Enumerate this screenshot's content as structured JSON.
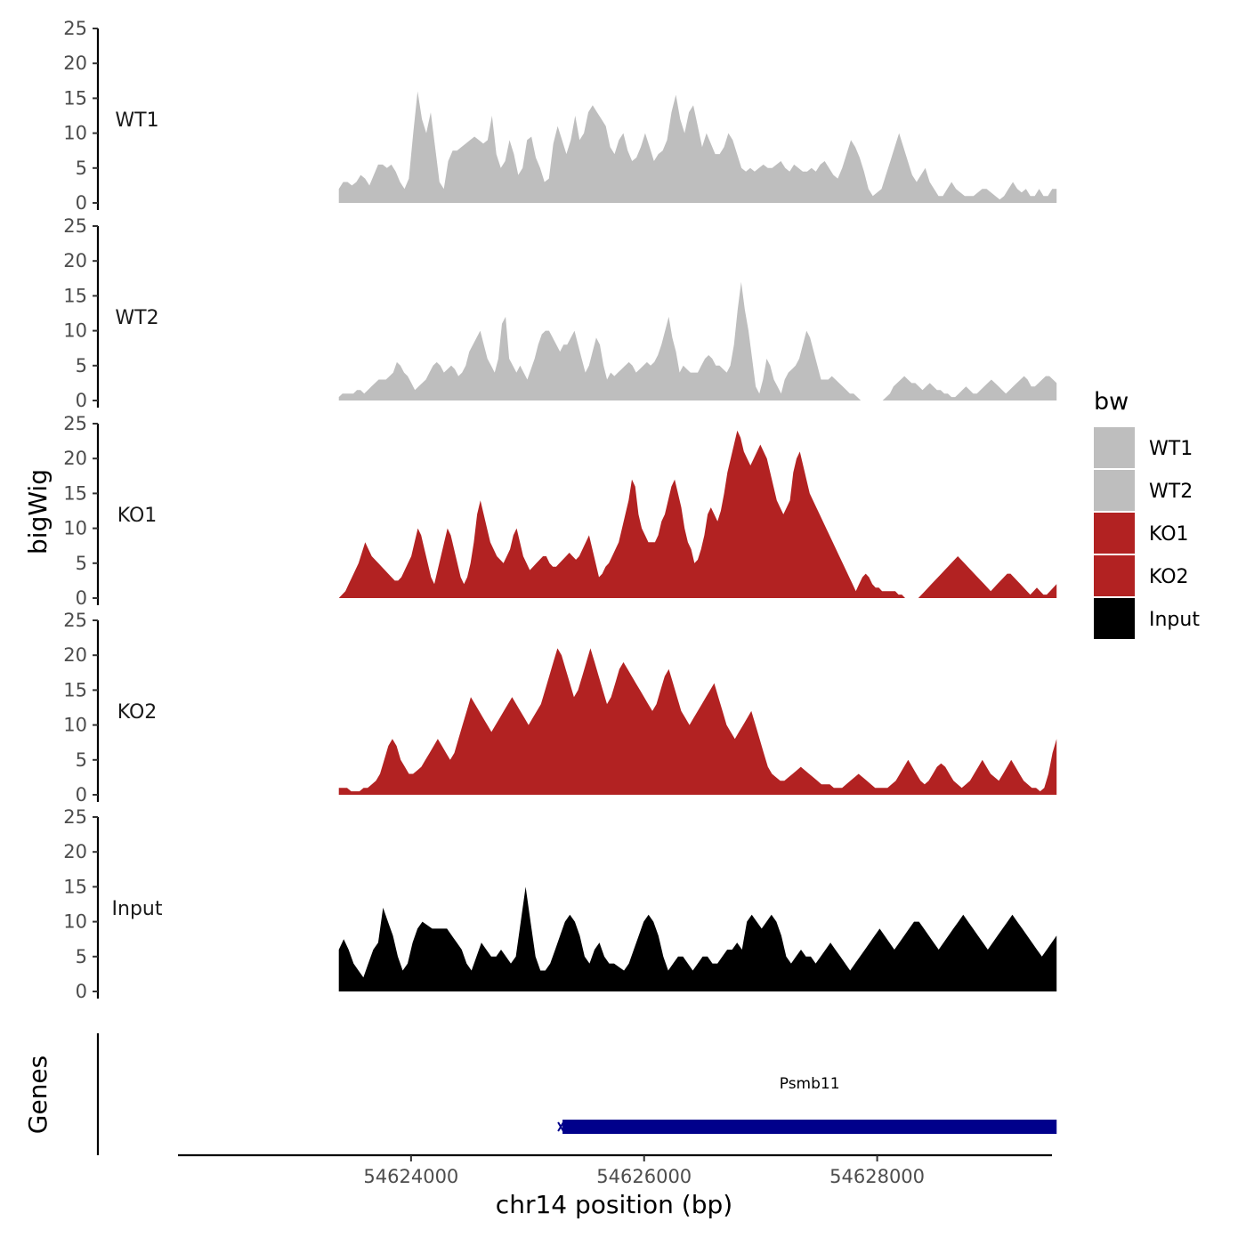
{
  "chart_data": {
    "type": "area",
    "xlabel": "chr14 position (bp)",
    "ylabel": "bigWig",
    "genes_label": "Genes",
    "xlim": [
      54622000,
      54629500
    ],
    "data_range": [
      54623380,
      54629540
    ],
    "x_ticks": [
      {
        "value": 54624000,
        "label": "54624000"
      },
      {
        "value": 54626000,
        "label": "54626000"
      },
      {
        "value": 54628000,
        "label": "54628000"
      }
    ],
    "ylim": [
      0,
      25
    ],
    "y_ticks": [
      "0",
      "5",
      "10",
      "15",
      "20",
      "25"
    ],
    "legend": {
      "title": "bw",
      "entries": [
        {
          "label": "WT1",
          "color": "#bebebe"
        },
        {
          "label": "WT2",
          "color": "#bebebe"
        },
        {
          "label": "KO1",
          "color": "#b22222"
        },
        {
          "label": "KO2",
          "color": "#b22222"
        },
        {
          "label": "Input",
          "color": "#000000"
        }
      ]
    },
    "tracks": [
      {
        "name": "WT1",
        "color": "#bebebe",
        "values": [
          2,
          3,
          3,
          2.5,
          3,
          4,
          3.5,
          2.5,
          4,
          5.5,
          5.5,
          5,
          5.5,
          4.5,
          3,
          2,
          3.5,
          10,
          16,
          12,
          10,
          13,
          8,
          3,
          2,
          6,
          7.5,
          7.5,
          8,
          8.5,
          9,
          9.5,
          9,
          8.5,
          9,
          12.5,
          7,
          5,
          6,
          9,
          7,
          4,
          5,
          9,
          9.5,
          6.5,
          5,
          3,
          3.5,
          8.5,
          11,
          9,
          7,
          9,
          12.5,
          9,
          10,
          13,
          14,
          13,
          12,
          11,
          8,
          7,
          9,
          10,
          7.5,
          6,
          6.5,
          8,
          10,
          8,
          6,
          7,
          7.5,
          9,
          13,
          15.5,
          12,
          10,
          13,
          14,
          11,
          8,
          10,
          8.5,
          7,
          7,
          8,
          10,
          9,
          7,
          5,
          4.5,
          5,
          4.5,
          5,
          5.5,
          5,
          5,
          5.5,
          6,
          5,
          4.5,
          5.5,
          5,
          4.5,
          4.5,
          5,
          4.5,
          5.5,
          6,
          5,
          4,
          3.5,
          5,
          7,
          9,
          8,
          6.5,
          4.5,
          2,
          1,
          1.5,
          2,
          4,
          6,
          8,
          10,
          8,
          6,
          4,
          3,
          4,
          5,
          3,
          2,
          1,
          1,
          2,
          3,
          2,
          1.5,
          1,
          1,
          1,
          1.5,
          2,
          2,
          1.5,
          1,
          0.5,
          1,
          2,
          3,
          2,
          1.5,
          2,
          1,
          1,
          2,
          1,
          1,
          2,
          2
        ]
      },
      {
        "name": "WT2",
        "color": "#bebebe",
        "values": [
          0.5,
          1,
          1,
          1,
          1,
          1.5,
          1.5,
          1,
          1.5,
          2,
          2.5,
          3,
          3,
          3,
          3.5,
          4,
          5.5,
          5,
          4,
          3.5,
          2.5,
          1.5,
          2,
          2.5,
          3,
          4,
          5,
          5.5,
          5,
          4,
          4.5,
          5,
          4.5,
          3.5,
          4,
          5,
          7,
          8,
          9,
          10,
          8,
          6,
          5,
          4,
          6,
          11,
          12,
          6,
          5,
          4,
          5,
          4,
          3,
          4.5,
          6,
          8,
          9.5,
          10,
          10,
          9,
          8,
          7,
          8,
          8,
          9,
          10,
          8,
          6,
          4,
          5,
          7,
          9,
          8,
          5,
          3,
          4,
          3.5,
          4,
          4.5,
          5,
          5.5,
          5,
          4,
          4.5,
          5,
          5.5,
          5,
          5.5,
          6.5,
          8,
          10,
          12,
          9,
          7,
          4,
          5,
          4.5,
          4,
          4,
          4,
          5,
          6,
          6.5,
          6,
          5,
          5,
          4.5,
          4,
          5,
          8,
          13,
          17,
          13,
          10,
          6,
          2,
          1,
          3,
          6,
          5,
          3,
          2,
          1,
          3,
          4,
          4.5,
          5,
          6,
          8,
          10,
          9,
          7,
          5,
          3,
          3,
          3,
          3.5,
          3,
          2.5,
          2,
          1.5,
          1,
          1,
          0.5,
          0,
          0,
          0,
          0,
          0,
          0,
          0,
          0.5,
          1,
          2,
          2.5,
          3,
          3.5,
          3,
          2.5,
          2.5,
          2,
          1.5,
          2,
          2.5,
          2,
          1.5,
          1.5,
          1,
          1,
          0.5,
          0.5,
          1,
          1.5,
          2,
          1.5,
          1,
          1,
          1.5,
          2,
          2.5,
          3,
          2.5,
          2,
          1.5,
          1,
          1.5,
          2,
          2.5,
          3,
          3.5,
          3,
          2,
          2,
          2.5,
          3,
          3.5,
          3.5,
          3,
          2.5
        ]
      },
      {
        "name": "KO1",
        "color": "#b22222",
        "values": [
          0,
          0.5,
          1,
          2,
          3,
          4,
          5,
          6.5,
          8,
          7,
          6,
          5.5,
          5,
          4.5,
          4,
          3.5,
          3,
          2.5,
          2.5,
          3,
          4,
          5,
          6,
          8,
          10,
          9,
          7,
          5,
          3,
          2,
          4,
          6,
          8,
          10,
          9,
          7,
          5,
          3,
          2,
          3,
          5,
          8,
          12,
          14,
          12,
          10,
          8,
          7,
          6,
          5.5,
          5,
          6,
          7,
          9,
          10,
          8,
          6,
          5,
          4,
          4.5,
          5,
          5.5,
          6,
          6,
          5,
          4.5,
          4.5,
          5,
          5.5,
          6,
          6.5,
          6,
          5.5,
          6,
          7,
          8,
          9,
          7,
          5,
          3,
          3.5,
          4.5,
          5,
          6,
          7,
          8,
          10,
          12,
          14,
          17,
          16,
          12,
          10,
          9,
          8,
          8,
          8,
          9,
          11,
          12,
          14,
          16,
          17,
          15,
          13,
          10,
          8,
          7,
          5,
          5.5,
          7,
          9,
          12,
          13,
          12,
          11,
          12.5,
          15,
          18,
          20,
          22,
          24,
          23,
          21,
          20,
          19,
          20,
          21,
          22,
          21,
          20,
          18,
          16,
          14,
          13,
          12,
          13,
          14,
          18,
          20,
          21,
          19,
          17,
          15,
          14,
          13,
          12,
          11,
          10,
          9,
          8,
          7,
          6,
          5,
          4,
          3,
          2,
          1,
          2,
          3,
          3.5,
          3,
          2,
          1.5,
          1.5,
          1,
          1,
          1,
          1,
          1,
          0.5,
          0.5,
          0,
          0,
          0,
          0,
          0,
          0.5,
          1,
          1.5,
          2,
          2.5,
          3,
          3.5,
          4,
          4.5,
          5,
          5.5,
          6,
          5.5,
          5,
          4.5,
          4,
          3.5,
          3,
          2.5,
          2,
          1.5,
          1,
          1.5,
          2,
          2.5,
          3,
          3.5,
          3.5,
          3,
          2.5,
          2,
          1.5,
          1,
          0.5,
          1,
          1.5,
          1,
          0.5,
          0.5,
          1,
          1.5,
          2
        ]
      },
      {
        "name": "KO2",
        "color": "#b22222",
        "values": [
          1,
          1,
          1,
          0.5,
          0.5,
          0.5,
          1,
          1,
          1.5,
          2,
          3,
          5,
          7,
          8,
          7,
          5,
          4,
          3,
          3,
          3.5,
          4,
          5,
          6,
          7,
          8,
          7,
          6,
          5,
          6,
          8,
          10,
          12,
          14,
          13,
          12,
          11,
          10,
          9,
          10,
          11,
          12,
          13,
          14,
          13,
          12,
          11,
          10,
          11,
          12,
          13,
          15,
          17,
          19,
          21,
          20,
          18,
          16,
          14,
          15,
          17,
          19,
          21,
          19,
          17,
          15,
          13,
          14,
          16,
          18,
          19,
          18,
          17,
          16,
          15,
          14,
          13,
          12,
          13,
          15,
          17,
          18,
          16,
          14,
          12,
          11,
          10,
          11,
          12,
          13,
          14,
          15,
          16,
          14,
          12,
          10,
          9,
          8,
          9,
          10,
          11,
          12,
          10,
          8,
          6,
          4,
          3,
          2.5,
          2,
          2,
          2.5,
          3,
          3.5,
          4,
          3.5,
          3,
          2.5,
          2,
          1.5,
          1.5,
          1.5,
          1,
          1,
          1,
          1.5,
          2,
          2.5,
          3,
          2.5,
          2,
          1.5,
          1,
          1,
          1,
          1,
          1.5,
          2,
          3,
          4,
          5,
          4,
          3,
          2,
          1.5,
          2,
          3,
          4,
          4.5,
          4,
          3,
          2,
          1.5,
          1,
          1.5,
          2,
          3,
          4,
          5,
          4,
          3,
          2.5,
          2,
          3,
          4,
          5,
          4,
          3,
          2,
          1.5,
          1,
          1,
          0.5,
          1,
          3,
          6,
          8
        ]
      },
      {
        "name": "Input",
        "color": "#000000",
        "values": [
          6,
          7.5,
          6,
          4,
          3,
          2,
          4,
          6,
          7,
          12,
          10,
          8,
          5,
          3,
          4,
          7,
          9,
          10,
          9.5,
          9,
          9,
          9,
          9,
          8,
          7,
          6,
          4,
          3,
          5,
          7,
          6,
          5,
          5,
          6,
          5,
          4,
          5,
          10,
          15,
          10,
          5,
          3,
          3,
          4,
          6,
          8,
          10,
          11,
          10,
          8,
          5,
          4,
          6,
          7,
          5,
          4,
          4,
          3.5,
          3,
          4,
          6,
          8,
          10,
          11,
          10,
          8,
          5,
          3,
          4,
          5,
          5,
          4,
          3,
          4,
          5,
          5,
          4,
          4,
          5,
          6,
          6,
          7,
          6,
          10,
          11,
          10,
          9,
          10,
          11,
          10,
          8,
          5,
          4,
          5,
          6,
          5,
          5,
          4,
          5,
          6,
          7,
          6,
          5,
          4,
          3,
          4,
          5,
          6,
          7,
          8,
          9,
          8,
          7,
          6,
          7,
          8,
          9,
          10,
          10,
          9,
          8,
          7,
          6,
          7,
          8,
          9,
          10,
          11,
          10,
          9,
          8,
          7,
          6,
          7,
          8,
          9,
          10,
          11,
          10,
          9,
          8,
          7,
          6,
          5,
          6,
          7,
          8
        ]
      }
    ],
    "genes": [
      {
        "name": "Psmb11",
        "start": 54625300,
        "end": 54629540,
        "color": "#00008b"
      }
    ]
  }
}
